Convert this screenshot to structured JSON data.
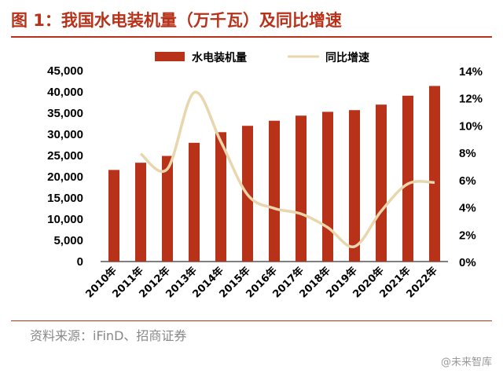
{
  "header": {
    "title": "图 1：我国水电装机量（万千瓦）及同比增速"
  },
  "footer": {
    "source": "资料来源：iFinD、招商证券",
    "watermark": "@未来智库"
  },
  "colors": {
    "bar": "#b8321a",
    "line": "#e8d6ad",
    "title": "#b8321a",
    "axis": "#000000"
  },
  "chart_data": {
    "type": "bar",
    "title": "",
    "categories": [
      "2010年",
      "2011年",
      "2012年",
      "2013年",
      "2014年",
      "2015年",
      "2016年",
      "2017年",
      "2018年",
      "2019年",
      "2020年",
      "2021年",
      "2022年"
    ],
    "series": [
      {
        "name": "水电装机量",
        "type": "bar",
        "axis": "left",
        "values": [
          21600,
          23300,
          24900,
          28000,
          30500,
          32000,
          33200,
          34400,
          35300,
          35700,
          37000,
          39100,
          41400
        ]
      },
      {
        "name": "同比增速",
        "type": "line",
        "axis": "right",
        "unit": "%",
        "values": [
          null,
          7.9,
          6.8,
          12.4,
          8.8,
          4.9,
          3.9,
          3.5,
          2.5,
          1.1,
          3.7,
          5.7,
          5.8
        ]
      }
    ],
    "left_axis": {
      "range": [
        0,
        45000
      ],
      "ticks": [
        "0",
        "5,000",
        "10,000",
        "15,000",
        "20,000",
        "25,000",
        "30,000",
        "35,000",
        "40,000",
        "45,000"
      ]
    },
    "right_axis": {
      "range": [
        0,
        14
      ],
      "ticks": [
        "0%",
        "2%",
        "4%",
        "6%",
        "8%",
        "10%",
        "12%",
        "14%"
      ]
    },
    "legend": {
      "position": "top-center",
      "entries": [
        "水电装机量",
        "同比增速"
      ]
    },
    "grid": false
  }
}
